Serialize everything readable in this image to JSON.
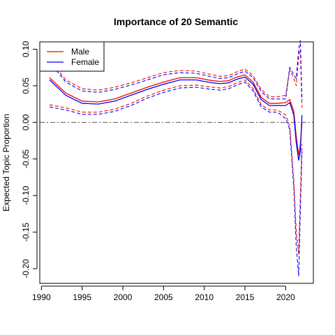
{
  "chart_data": {
    "type": "line",
    "title": "Importance of 20 Semantic",
    "xlabel": "",
    "ylabel": "Expected Topic Proportion",
    "xlim": [
      1989.8,
      2023.4
    ],
    "ylim": [
      -0.22,
      0.11
    ],
    "xticks": [
      1990,
      1995,
      2000,
      2005,
      2010,
      2015,
      2020
    ],
    "yticks": [
      -0.2,
      -0.15,
      -0.1,
      -0.05,
      0.0,
      0.05,
      0.1
    ],
    "ytick_labels": [
      "-0.20",
      "-0.15",
      "-0.10",
      "-0.05",
      "0.00",
      "0.05",
      "0.10"
    ],
    "reference_line_y": 0.0,
    "grid": false,
    "legend_position": "top-left",
    "legend": [
      "Male",
      "Female"
    ],
    "colors": {
      "Male": "#ff0000",
      "Female": "#0000ff",
      "reference": "#555555"
    },
    "x": [
      1991,
      1993,
      1995,
      1997,
      1999,
      2001,
      2003,
      2005,
      2007,
      2009,
      2011,
      2012,
      2013,
      2014,
      2015,
      2016,
      2017,
      2018,
      2019,
      2020,
      2020.5,
      2021,
      2021.3,
      2021.6,
      2021.8,
      2022
    ],
    "series": [
      {
        "name": "Male",
        "values": [
          0.061,
          0.04,
          0.029,
          0.028,
          0.032,
          0.04,
          0.048,
          0.055,
          0.061,
          0.061,
          0.057,
          0.056,
          0.057,
          0.062,
          0.065,
          0.055,
          0.034,
          0.026,
          0.026,
          0.027,
          0.031,
          0.015,
          -0.02,
          -0.045,
          -0.03,
          0.0
        ],
        "upper": [
          0.086,
          0.058,
          0.046,
          0.044,
          0.048,
          0.054,
          0.061,
          0.068,
          0.071,
          0.07,
          0.065,
          0.063,
          0.064,
          0.069,
          0.073,
          0.064,
          0.045,
          0.035,
          0.035,
          0.037,
          0.072,
          0.06,
          0.05,
          0.09,
          0.1,
          0.02
        ],
        "lower": [
          0.024,
          0.02,
          0.014,
          0.014,
          0.018,
          0.026,
          0.036,
          0.044,
          0.05,
          0.051,
          0.048,
          0.047,
          0.049,
          0.054,
          0.058,
          0.046,
          0.024,
          0.017,
          0.017,
          0.01,
          -0.005,
          -0.08,
          -0.15,
          -0.18,
          -0.1,
          -0.03
        ]
      },
      {
        "name": "Female",
        "values": [
          0.058,
          0.037,
          0.026,
          0.025,
          0.029,
          0.037,
          0.045,
          0.052,
          0.058,
          0.058,
          0.054,
          0.053,
          0.054,
          0.059,
          0.062,
          0.052,
          0.031,
          0.023,
          0.023,
          0.023,
          0.027,
          0.01,
          -0.028,
          -0.052,
          -0.04,
          0.01
        ],
        "upper": [
          0.083,
          0.055,
          0.043,
          0.041,
          0.045,
          0.051,
          0.058,
          0.065,
          0.068,
          0.067,
          0.062,
          0.06,
          0.061,
          0.066,
          0.07,
          0.061,
          0.042,
          0.032,
          0.032,
          0.032,
          0.075,
          0.065,
          0.06,
          0.1,
          0.112,
          0.03
        ],
        "lower": [
          0.021,
          0.017,
          0.011,
          0.011,
          0.015,
          0.023,
          0.033,
          0.041,
          0.047,
          0.048,
          0.045,
          0.044,
          0.046,
          0.051,
          0.055,
          0.043,
          0.021,
          0.014,
          0.014,
          0.005,
          -0.01,
          -0.09,
          -0.17,
          -0.21,
          -0.12,
          -0.04
        ]
      }
    ]
  }
}
